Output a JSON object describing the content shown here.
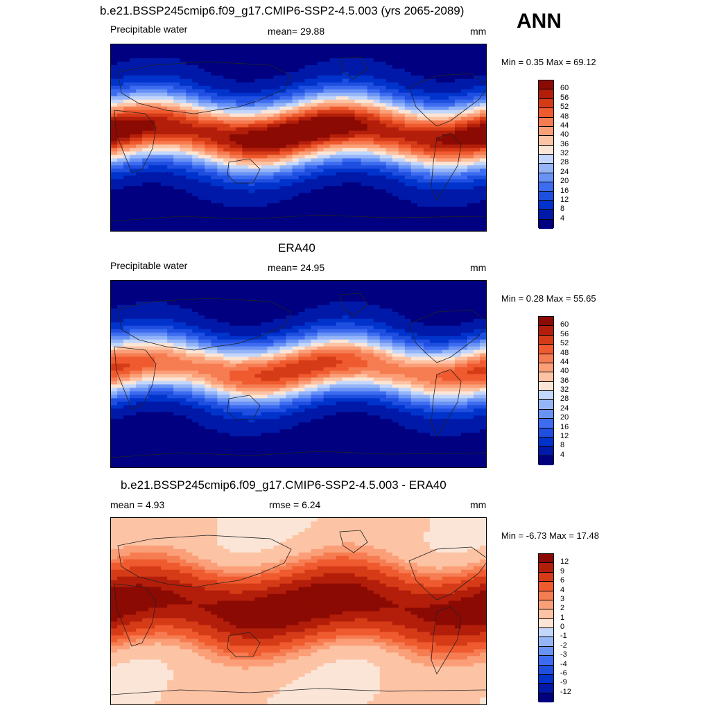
{
  "season": "ANN",
  "colors": {
    "abs_scale": [
      "#000080",
      "#0019a8",
      "#0033cc",
      "#1f4fe0",
      "#3d6cf0",
      "#6992f5",
      "#95b5f8",
      "#c3d6fb",
      "#fbe5d6",
      "#fcc3a4",
      "#fb9f78",
      "#f67c51",
      "#ef5a2e",
      "#d63b17",
      "#b21e0a",
      "#8b0a03"
    ],
    "diff_scale": [
      "#000080",
      "#0019a8",
      "#0033cc",
      "#1f4fe0",
      "#3d6cf0",
      "#6992f5",
      "#95b5f8",
      "#c3d6fb",
      "#fbe5d6",
      "#fcc3a4",
      "#fb9f78",
      "#f67c51",
      "#ef5a2e",
      "#d63b17",
      "#b21e0a",
      "#8b0a03"
    ],
    "coastline": "#222222"
  },
  "panels": [
    {
      "title": "b.e21.BSSP245cmip6.f09_g17.CMIP6-SSP2-4.5.003 (yrs 2065-2089)",
      "left_label": "Precipitable water",
      "center_label": "mean=  29.88",
      "units": "mm",
      "min_label": "Min =",
      "min_value": "0.35",
      "max_label": "Max =",
      "max_value": "69.12",
      "levels": [
        "60",
        "56",
        "52",
        "48",
        "44",
        "40",
        "36",
        "32",
        "28",
        "24",
        "20",
        "16",
        "12",
        "8",
        "4"
      ],
      "scale": "abs",
      "equator_peak": 62,
      "pole_value": 3,
      "width_factor": 1.0
    },
    {
      "title": "ERA40",
      "left_label": "Precipitable water",
      "center_label": "mean=  24.95",
      "units": "mm",
      "min_label": "Min =",
      "min_value": "0.28",
      "max_label": "Max =",
      "max_value": "55.65",
      "levels": [
        "60",
        "56",
        "52",
        "48",
        "44",
        "40",
        "36",
        "32",
        "28",
        "24",
        "20",
        "16",
        "12",
        "8",
        "4"
      ],
      "scale": "abs",
      "equator_peak": 50,
      "pole_value": 3,
      "width_factor": 0.9
    },
    {
      "title": "b.e21.BSSP245cmip6.f09_g17.CMIP6-SSP2-4.5.003 - ERA40",
      "left_label": "mean =   4.93",
      "center_label": "rmse =   6.24",
      "units": "mm",
      "min_label": "Min =",
      "min_value": "-6.73",
      "max_label": "Max =",
      "max_value": "17.48",
      "levels": [
        "12",
        "9",
        "6",
        "4",
        "3",
        "2",
        "1",
        "0",
        "-1",
        "-2",
        "-3",
        "-4",
        "-6",
        "-9",
        "-12"
      ],
      "scale": "diff",
      "equator_peak": 14,
      "pole_value": 1,
      "width_factor": 1.0
    }
  ]
}
